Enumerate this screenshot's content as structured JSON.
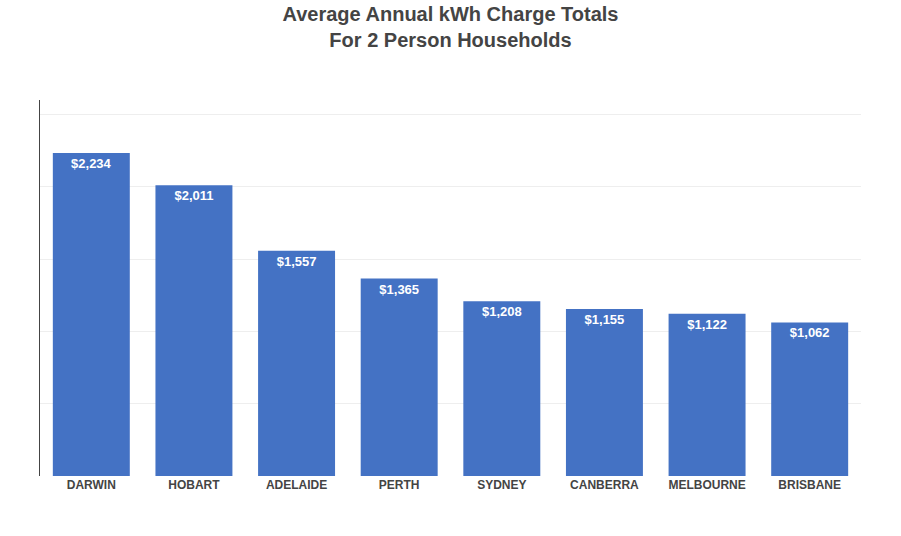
{
  "chart_data": {
    "type": "bar",
    "title": "Average Annual kWh Charge Totals",
    "subtitle": "For 2 Person Households",
    "categories": [
      "DARWIN",
      "HOBART",
      "ADELAIDE",
      "PERTH",
      "SYDNEY",
      "CANBERRA",
      "MELBOURNE",
      "BRISBANE"
    ],
    "values": [
      2234,
      2011,
      1557,
      1365,
      1208,
      1155,
      1122,
      1062
    ],
    "value_labels": [
      "$2,234",
      "$2,011",
      "$1,557",
      "$1,365",
      "$1,208",
      "$1,155",
      "$1,122",
      "$1,062"
    ],
    "color": "#4472C4",
    "ylim": [
      0,
      2600
    ],
    "yticks": [
      0,
      500,
      1000,
      1500,
      2000,
      2500
    ],
    "grid": true,
    "data_labels": true,
    "tick_labels": "x"
  }
}
